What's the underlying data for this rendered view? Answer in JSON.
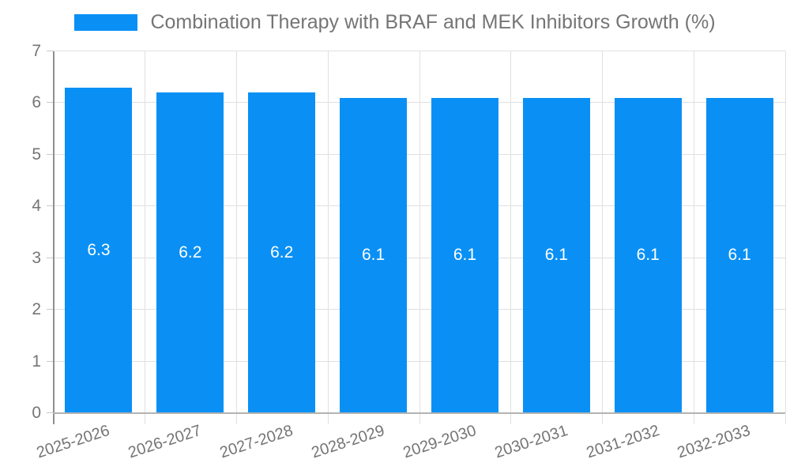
{
  "chart_data": {
    "type": "bar",
    "title": "Combination Therapy with BRAF and MEK Inhibitors Growth (%)",
    "categories": [
      "2025-2026",
      "2026-2027",
      "2027-2028",
      "2028-2029",
      "2029-2030",
      "2030-2031",
      "2031-2032",
      "2032-2033"
    ],
    "values": [
      6.3,
      6.2,
      6.2,
      6.1,
      6.1,
      6.1,
      6.1,
      6.1
    ],
    "value_labels": [
      "6.3",
      "6.2",
      "6.2",
      "6.1",
      "6.1",
      "6.1",
      "6.1",
      "6.1"
    ],
    "xlabel": "",
    "ylabel": "",
    "ylim": [
      0,
      7
    ],
    "yticks": [
      0,
      1,
      2,
      3,
      4,
      5,
      6,
      7
    ],
    "grid": true,
    "legend_position": "top",
    "colors": {
      "bar": "#0a90f5",
      "bar_label": "#ffffff",
      "axis_text": "#757575",
      "gridline": "#e0e0e0",
      "y_axis_line": "#8f8f8f",
      "x_baseline": "#b3b3b3",
      "tick": "#c9c9c9",
      "background": "#ffffff"
    }
  }
}
